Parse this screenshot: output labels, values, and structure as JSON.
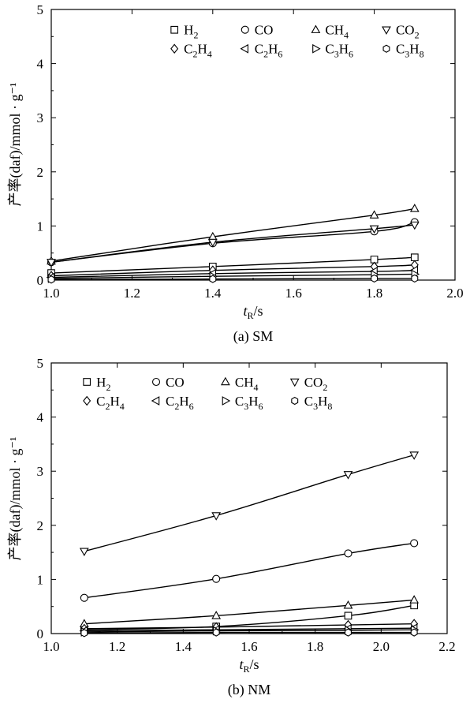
{
  "chart_data": [
    {
      "type": "line",
      "caption": "(a) SM",
      "xlabel": "tR/s",
      "ylabel": "产率(daf)/mmol · g⁻¹",
      "xlim": [
        1.0,
        2.0
      ],
      "ylim": [
        0,
        5
      ],
      "xticks": [
        "1.0",
        "1.2",
        "1.4",
        "1.6",
        "1.8",
        "2.0"
      ],
      "yticks": [
        "0",
        "1",
        "2",
        "3",
        "4",
        "5"
      ],
      "legend_position": "top-right",
      "x": [
        1.0,
        1.4,
        1.8,
        1.9
      ],
      "series": [
        {
          "name": "H2",
          "marker": "square",
          "values": [
            0.13,
            0.25,
            0.38,
            0.42
          ]
        },
        {
          "name": "CO",
          "marker": "circle",
          "values": [
            0.33,
            0.68,
            0.9,
            1.07
          ]
        },
        {
          "name": "CH4",
          "marker": "triangle-up",
          "values": [
            0.35,
            0.8,
            1.2,
            1.32
          ]
        },
        {
          "name": "CO2",
          "marker": "triangle-down",
          "values": [
            0.33,
            0.7,
            0.95,
            1.02
          ]
        },
        {
          "name": "C2H4",
          "marker": "diamond",
          "values": [
            0.08,
            0.18,
            0.25,
            0.28
          ]
        },
        {
          "name": "C2H6",
          "marker": "triangle-left",
          "values": [
            0.05,
            0.12,
            0.16,
            0.18
          ]
        },
        {
          "name": "C3H6",
          "marker": "triangle-right",
          "values": [
            0.03,
            0.07,
            0.1,
            0.11
          ]
        },
        {
          "name": "C3H8",
          "marker": "hexagon",
          "values": [
            0.01,
            0.02,
            0.03,
            0.03
          ]
        }
      ]
    },
    {
      "type": "line",
      "caption": "(b) NM",
      "xlabel": "tR/s",
      "ylabel": "产率(daf)/mmol · g⁻¹",
      "xlim": [
        1.0,
        2.2
      ],
      "ylim": [
        0,
        5
      ],
      "xticks": [
        "1.0",
        "1.2",
        "1.4",
        "1.6",
        "1.8",
        "2.0",
        "2.2"
      ],
      "yticks": [
        "0",
        "1",
        "2",
        "3",
        "4",
        "5"
      ],
      "legend_position": "top-left",
      "x": [
        1.1,
        1.5,
        1.9,
        2.1
      ],
      "series": [
        {
          "name": "H2",
          "marker": "square",
          "values": [
            0.07,
            0.13,
            0.33,
            0.52
          ]
        },
        {
          "name": "CO",
          "marker": "circle",
          "values": [
            0.66,
            1.01,
            1.48,
            1.67
          ]
        },
        {
          "name": "CH4",
          "marker": "triangle-up",
          "values": [
            0.18,
            0.33,
            0.52,
            0.62
          ]
        },
        {
          "name": "CO2",
          "marker": "triangle-down",
          "values": [
            1.52,
            2.18,
            2.94,
            3.3
          ]
        },
        {
          "name": "C2H4",
          "marker": "diamond",
          "values": [
            0.09,
            0.12,
            0.16,
            0.18
          ]
        },
        {
          "name": "C2H6",
          "marker": "triangle-left",
          "values": [
            0.05,
            0.07,
            0.09,
            0.1
          ]
        },
        {
          "name": "C3H6",
          "marker": "triangle-right",
          "values": [
            0.03,
            0.05,
            0.06,
            0.07
          ]
        },
        {
          "name": "C3H8",
          "marker": "hexagon",
          "values": [
            0.01,
            0.02,
            0.02,
            0.02
          ]
        }
      ]
    }
  ]
}
